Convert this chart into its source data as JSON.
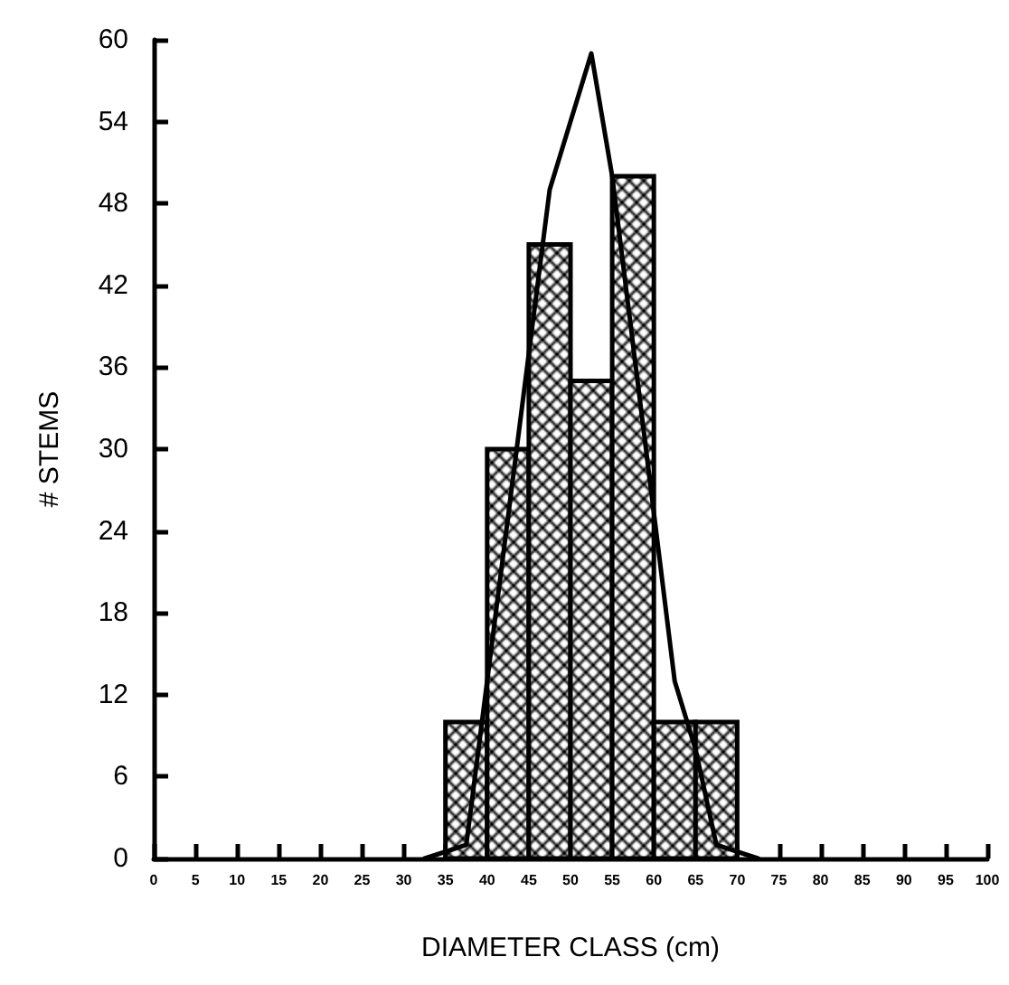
{
  "chart_data": {
    "type": "histogram",
    "xlabel": "DIAMETER CLASS (cm)",
    "ylabel": "# STEMS",
    "series": [
      {
        "color": "#000000",
        "bins": [
          35,
          40,
          45,
          50,
          55,
          60,
          65,
          70
        ],
        "values": [
          10,
          30,
          45,
          35,
          50,
          10,
          10
        ]
      },
      {
        "type": "line",
        "color": "#000000",
        "x": [
          32.5,
          37.5,
          47.5,
          52.5,
          55,
          62.5,
          65,
          67.5,
          72.5
        ],
        "values": [
          0,
          1,
          49,
          59,
          50,
          13,
          8,
          1,
          0
        ]
      }
    ],
    "xlim": [
      0,
      100
    ],
    "xticks": [
      0,
      5,
      10,
      15,
      20,
      25,
      30,
      35,
      40,
      45,
      50,
      55,
      60,
      65,
      70,
      75,
      80,
      85,
      90,
      95,
      100
    ],
    "ylim": [
      0,
      60
    ],
    "yticks": [
      0,
      6,
      12,
      18,
      24,
      30,
      36,
      42,
      48,
      54,
      60
    ],
    "grid": false,
    "marker": "none",
    "line_style": "solid"
  }
}
